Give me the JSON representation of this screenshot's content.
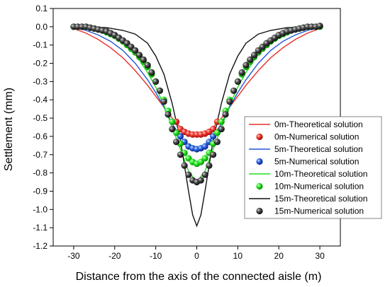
{
  "chart_data": {
    "type": "line",
    "xlabel": "Distance from the axis of the connected aisle (m)",
    "ylabel": "Settlement (mm)",
    "xlim": [
      -35,
      35
    ],
    "ylim": [
      -1.2,
      0.1
    ],
    "xticks": [
      -30,
      -20,
      -10,
      0,
      10,
      20,
      30
    ],
    "yticks": [
      0.1,
      0.0,
      -0.1,
      -0.2,
      -0.3,
      -0.4,
      -0.5,
      -0.6,
      -0.7,
      -0.8,
      -0.9,
      -1.0,
      -1.1,
      -1.2
    ],
    "grid": false,
    "legend_position": "right",
    "series": [
      {
        "name": "0m-Theoretical solution",
        "kind": "line",
        "color": "#e8302a",
        "x": [
          -30,
          -27,
          -24,
          -21,
          -18,
          -15,
          -12,
          -10,
          -8,
          -6,
          -4,
          -2,
          0,
          2,
          4,
          6,
          8,
          10,
          12,
          15,
          18,
          21,
          24,
          27,
          30
        ],
        "y": [
          -0.01,
          -0.035,
          -0.07,
          -0.115,
          -0.17,
          -0.24,
          -0.32,
          -0.38,
          -0.44,
          -0.5,
          -0.55,
          -0.58,
          -0.59,
          -0.58,
          -0.55,
          -0.5,
          -0.44,
          -0.38,
          -0.32,
          -0.24,
          -0.17,
          -0.115,
          -0.07,
          -0.035,
          -0.01
        ]
      },
      {
        "name": "0m-Numerical solution",
        "kind": "scatter",
        "color": "#e8302a",
        "x": [
          -5,
          -4,
          -3,
          -2,
          -1,
          0,
          1,
          2,
          3,
          4,
          5
        ],
        "y": [
          -0.52,
          -0.56,
          -0.575,
          -0.585,
          -0.59,
          -0.59,
          -0.59,
          -0.585,
          -0.575,
          -0.56,
          -0.52
        ]
      },
      {
        "name": "5m-Theoretical solution",
        "kind": "line",
        "color": "#2457d6",
        "x": [
          -30,
          -27,
          -24,
          -21,
          -18,
          -15,
          -12,
          -10,
          -8,
          -6,
          -4,
          -2,
          0,
          2,
          4,
          6,
          8,
          10,
          12,
          15,
          18,
          21,
          24,
          27,
          30
        ],
        "y": [
          -0.005,
          -0.02,
          -0.045,
          -0.08,
          -0.13,
          -0.2,
          -0.29,
          -0.36,
          -0.44,
          -0.53,
          -0.6,
          -0.65,
          -0.665,
          -0.65,
          -0.6,
          -0.53,
          -0.44,
          -0.36,
          -0.29,
          -0.2,
          -0.13,
          -0.08,
          -0.045,
          -0.02,
          -0.005
        ]
      },
      {
        "name": "5m-Numerical solution",
        "kind": "scatter",
        "color": "#2457d6",
        "x": [
          -4,
          -3,
          -2,
          -1,
          0,
          1,
          2,
          3,
          4
        ],
        "y": [
          -0.6,
          -0.63,
          -0.655,
          -0.665,
          -0.67,
          -0.665,
          -0.655,
          -0.63,
          -0.6
        ]
      },
      {
        "name": "10m-Theoretical solution",
        "kind": "line",
        "color": "#1ee01a",
        "x": [
          -30,
          -27,
          -24,
          -21,
          -18,
          -15,
          -12,
          -10,
          -8,
          -6,
          -4,
          -2,
          0,
          2,
          4,
          6,
          8,
          10,
          12,
          15,
          18,
          21,
          24,
          27,
          30
        ],
        "y": [
          0.0,
          -0.01,
          -0.025,
          -0.05,
          -0.09,
          -0.15,
          -0.25,
          -0.33,
          -0.43,
          -0.55,
          -0.67,
          -0.79,
          -0.85,
          -0.79,
          -0.67,
          -0.55,
          -0.43,
          -0.33,
          -0.25,
          -0.15,
          -0.09,
          -0.05,
          -0.025,
          -0.01,
          0.0
        ]
      },
      {
        "name": "10m-Numerical solution",
        "kind": "scatter",
        "color": "#1ee01a",
        "x": [
          -30,
          -29,
          -28,
          -27,
          -26,
          -25,
          -24,
          -23,
          -22,
          -21,
          -20,
          -19,
          -18,
          -17,
          -16,
          -15,
          -14,
          -13,
          -12,
          -11,
          -10,
          -9,
          -8,
          -7,
          -6,
          -5,
          -4,
          -3,
          -2,
          -1,
          0,
          1,
          2,
          3,
          4,
          5,
          6,
          7,
          8,
          9,
          10,
          11,
          12,
          13,
          14,
          15,
          16,
          17,
          18,
          19,
          20,
          21,
          22,
          23,
          24,
          25,
          26,
          27,
          28,
          29,
          30
        ],
        "y": [
          0.0,
          0.0,
          0.0,
          0.0,
          -0.005,
          -0.01,
          -0.015,
          -0.02,
          -0.03,
          -0.04,
          -0.05,
          -0.065,
          -0.08,
          -0.1,
          -0.12,
          -0.14,
          -0.165,
          -0.19,
          -0.22,
          -0.26,
          -0.3,
          -0.35,
          -0.4,
          -0.46,
          -0.52,
          -0.58,
          -0.64,
          -0.69,
          -0.72,
          -0.74,
          -0.75,
          -0.74,
          -0.72,
          -0.69,
          -0.64,
          -0.58,
          -0.52,
          -0.46,
          -0.4,
          -0.35,
          -0.3,
          -0.26,
          -0.22,
          -0.19,
          -0.165,
          -0.14,
          -0.12,
          -0.1,
          -0.08,
          -0.065,
          -0.05,
          -0.04,
          -0.03,
          -0.02,
          -0.015,
          -0.01,
          -0.005,
          0.0,
          0.0,
          0.0,
          0.0
        ]
      },
      {
        "name": "15m-Theoretical solution",
        "kind": "line",
        "color": "#111111",
        "x": [
          -30,
          -26,
          -22,
          -18,
          -15,
          -12,
          -10,
          -8,
          -6,
          -4,
          -2,
          -1,
          0,
          1,
          2,
          4,
          6,
          8,
          10,
          12,
          15,
          18,
          22,
          26,
          30
        ],
        "y": [
          0.0,
          0.0,
          -0.005,
          -0.02,
          -0.04,
          -0.09,
          -0.16,
          -0.26,
          -0.42,
          -0.62,
          -0.9,
          -1.03,
          -1.09,
          -1.03,
          -0.9,
          -0.62,
          -0.42,
          -0.26,
          -0.16,
          -0.09,
          -0.04,
          -0.02,
          -0.005,
          0.0,
          0.0
        ]
      },
      {
        "name": "15m-Numerical solution",
        "kind": "scatter",
        "color": "#3a3a3a",
        "x": [
          -30,
          -29,
          -28,
          -27,
          -26,
          -25,
          -24,
          -23,
          -22,
          -21,
          -20,
          -19,
          -18,
          -17,
          -16,
          -15,
          -14,
          -13,
          -12,
          -11,
          -10,
          -9,
          -8,
          -7,
          -6,
          -5,
          -4,
          -3,
          -2,
          -1,
          0,
          1,
          2,
          3,
          4,
          5,
          6,
          7,
          8,
          9,
          10,
          11,
          12,
          13,
          14,
          15,
          16,
          17,
          18,
          19,
          20,
          21,
          22,
          23,
          24,
          25,
          26,
          27,
          28,
          29,
          30
        ],
        "y": [
          0.0,
          0.0,
          0.0,
          0.0,
          -0.005,
          -0.01,
          -0.015,
          -0.02,
          -0.025,
          -0.035,
          -0.045,
          -0.06,
          -0.075,
          -0.09,
          -0.11,
          -0.13,
          -0.155,
          -0.18,
          -0.21,
          -0.25,
          -0.3,
          -0.35,
          -0.41,
          -0.48,
          -0.56,
          -0.63,
          -0.7,
          -0.76,
          -0.81,
          -0.84,
          -0.85,
          -0.84,
          -0.81,
          -0.76,
          -0.7,
          -0.63,
          -0.56,
          -0.48,
          -0.41,
          -0.35,
          -0.3,
          -0.25,
          -0.21,
          -0.18,
          -0.155,
          -0.13,
          -0.11,
          -0.09,
          -0.075,
          -0.06,
          -0.045,
          -0.035,
          -0.025,
          -0.02,
          -0.015,
          -0.01,
          -0.005,
          0.0,
          0.0,
          0.0,
          0.005
        ]
      }
    ]
  }
}
